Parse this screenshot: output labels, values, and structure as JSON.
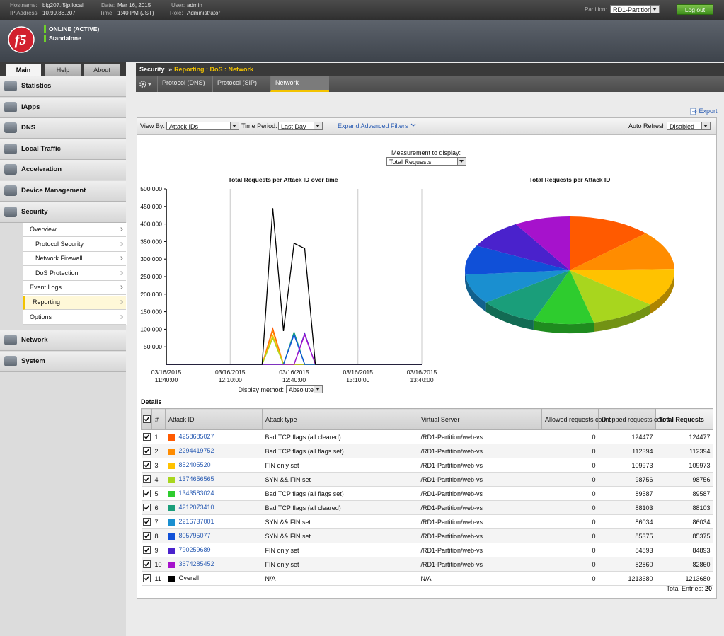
{
  "header": {
    "hostname_label": "Hostname:",
    "hostname": "big207.f5jp.local",
    "ip_label": "IP Address:",
    "ip": "10.99.88.207",
    "date_label": "Date:",
    "date": "Mar 16, 2015",
    "time_label": "Time:",
    "time": "1:40 PM (JST)",
    "user_label": "User:",
    "user": "admin",
    "role_label": "Role:",
    "role": "Administrator",
    "partition_label": "Partition:",
    "partition": "RD1-Partition",
    "logout": "Log out"
  },
  "status": {
    "logo": "f5",
    "state": "ONLINE (ACTIVE)",
    "mode": "Standalone"
  },
  "nav": {
    "tabs": [
      "Main",
      "Help",
      "About"
    ],
    "items": [
      "Statistics",
      "iApps",
      "DNS",
      "Local Traffic",
      "Acceleration",
      "Device Management",
      "Security"
    ],
    "submenu": [
      "Overview",
      "Protocol Security",
      "Network Firewall",
      "DoS Protection",
      "Event Logs",
      "Reporting",
      "Options"
    ],
    "items_bottom": [
      "Network",
      "System"
    ]
  },
  "breadcrumb": {
    "section": "Security",
    "separator": "»",
    "path": "Reporting : DoS : Network"
  },
  "tabs": [
    "Protocol (DNS)",
    "Protocol (SIP)",
    "Network"
  ],
  "toolbar": {
    "export": "Export",
    "view_by_label": "View By:",
    "view_by": "Attack IDs",
    "time_period_label": "Time Period:",
    "time_period": "Last Day",
    "advanced_filters": "Expand Advanced Filters",
    "auto_refresh_label": "Auto Refresh",
    "auto_refresh": "Disabled"
  },
  "measurement": {
    "label": "Measurement to display:",
    "value": "Total Requests"
  },
  "display_method": {
    "label": "Display method:",
    "value": "Absolute"
  },
  "chart_data": [
    {
      "type": "line",
      "title": "Total Requests per Attack ID over time",
      "x": [
        "03/16/2015 11:40:00",
        "03/16/2015 12:25:00",
        "03/16/2015 12:30:00",
        "03/16/2015 12:35:00",
        "03/16/2015 12:40:00",
        "03/16/2015 12:45:00",
        "03/16/2015 12:50:00",
        "03/16/2015 13:40:00"
      ],
      "xlim": [
        "03/16/2015 11:40:00",
        "03/16/2015 13:40:00"
      ],
      "xticks": [
        "03/16/2015 11:40:00",
        "03/16/2015 12:10:00",
        "03/16/2015 12:40:00",
        "03/16/2015 13:10:00",
        "03/16/2015 13:40:00"
      ],
      "ylim": [
        0,
        500000
      ],
      "yticks": [
        {
          "value": 50000,
          "label": "50 000"
        },
        {
          "value": 100000,
          "label": "100 000"
        },
        {
          "value": 150000,
          "label": "150 000"
        },
        {
          "value": 200000,
          "label": "200 000"
        },
        {
          "value": 250000,
          "label": "250 000"
        },
        {
          "value": 300000,
          "label": "300 000"
        },
        {
          "value": 350000,
          "label": "350 000"
        },
        {
          "value": 400000,
          "label": "400 000"
        },
        {
          "value": 450000,
          "label": "450 000"
        },
        {
          "value": 500000,
          "label": "500 000"
        }
      ],
      "grid": "x",
      "series": [
        {
          "color": "#ff5a00",
          "values": [
            0,
            0,
            102000,
            0,
            0,
            0,
            0,
            0
          ]
        },
        {
          "color": "#ff8c00",
          "values": [
            0,
            0,
            95000,
            0,
            0,
            0,
            0,
            0
          ]
        },
        {
          "color": "#ffc200",
          "values": [
            0,
            0,
            82000,
            0,
            0,
            0,
            0,
            0
          ]
        },
        {
          "color": "#a8d61e",
          "values": [
            0,
            0,
            75000,
            0,
            0,
            0,
            0,
            0
          ]
        },
        {
          "color": "#2ecc2e",
          "values": [
            0,
            0,
            0,
            0,
            88000,
            0,
            0,
            0
          ]
        },
        {
          "color": "#1a9e7a",
          "values": [
            0,
            0,
            0,
            0,
            92000,
            0,
            0,
            0
          ]
        },
        {
          "color": "#1a8fd0",
          "values": [
            0,
            0,
            0,
            0,
            86000,
            0,
            0,
            0
          ]
        },
        {
          "color": "#1050d8",
          "values": [
            0,
            0,
            0,
            0,
            84000,
            0,
            0,
            0
          ]
        },
        {
          "color": "#4a22cc",
          "values": [
            0,
            0,
            0,
            0,
            0,
            88000,
            0,
            0
          ]
        },
        {
          "color": "#a612cc",
          "values": [
            0,
            0,
            0,
            0,
            0,
            84000,
            0,
            0
          ]
        },
        {
          "color": "#000000",
          "values": [
            0,
            0,
            445000,
            95000,
            345000,
            330000,
            0,
            0
          ]
        }
      ]
    },
    {
      "type": "pie3d",
      "title": "Total Requests per Attack ID",
      "values": [
        124477,
        112394,
        109973,
        98756,
        89587,
        88103,
        86034,
        85375,
        84893,
        82860
      ],
      "colors": [
        "#ff5a00",
        "#ff8c00",
        "#ffc200",
        "#a8d61e",
        "#2ecc2e",
        "#1a9e7a",
        "#1a8fd0",
        "#1050d8",
        "#4a22cc",
        "#a612cc"
      ]
    }
  ],
  "details": {
    "title": "Details",
    "columns": [
      "#",
      "Attack ID",
      "Attack type",
      "Virtual Server",
      "Allowed requests count",
      "Dropped requests count",
      "Total Requests"
    ],
    "rows": [
      [
        1,
        "4258685027",
        "Bad TCP flags (all cleared)",
        "/RD1-Partition/web-vs",
        0,
        124477,
        124477
      ],
      [
        2,
        "2294419752",
        "Bad TCP flags (all flags set)",
        "/RD1-Partition/web-vs",
        0,
        112394,
        112394
      ],
      [
        3,
        "852405520",
        "FIN only set",
        "/RD1-Partition/web-vs",
        0,
        109973,
        109973
      ],
      [
        4,
        "1374656565",
        "SYN && FIN set",
        "/RD1-Partition/web-vs",
        0,
        98756,
        98756
      ],
      [
        5,
        "1343583024",
        "Bad TCP flags (all flags set)",
        "/RD1-Partition/web-vs",
        0,
        89587,
        89587
      ],
      [
        6,
        "4212073410",
        "Bad TCP flags (all cleared)",
        "/RD1-Partition/web-vs",
        0,
        88103,
        88103
      ],
      [
        7,
        "2216737001",
        "SYN && FIN set",
        "/RD1-Partition/web-vs",
        0,
        86034,
        86034
      ],
      [
        8,
        "805795077",
        "SYN && FIN set",
        "/RD1-Partition/web-vs",
        0,
        85375,
        85375
      ],
      [
        9,
        "790259689",
        "FIN only set",
        "/RD1-Partition/web-vs",
        0,
        84893,
        84893
      ],
      [
        10,
        "3674285452",
        "FIN only set",
        "/RD1-Partition/web-vs",
        0,
        82860,
        82860
      ],
      [
        11,
        "Overall",
        "N/A",
        "N/A",
        0,
        1213680,
        1213680
      ]
    ],
    "total_label": "Total Entries:",
    "total": 20
  }
}
